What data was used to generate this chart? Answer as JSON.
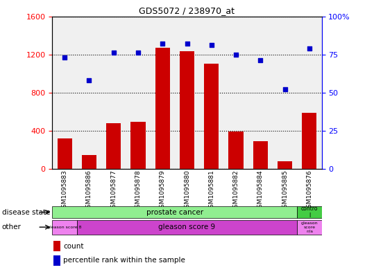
{
  "title": "GDS5072 / 238970_at",
  "samples": [
    "GSM1095883",
    "GSM1095886",
    "GSM1095877",
    "GSM1095878",
    "GSM1095879",
    "GSM1095880",
    "GSM1095881",
    "GSM1095882",
    "GSM1095884",
    "GSM1095885",
    "GSM1095876"
  ],
  "counts": [
    320,
    140,
    480,
    490,
    1270,
    1230,
    1100,
    390,
    290,
    80,
    590
  ],
  "percentiles": [
    73,
    58,
    76,
    76,
    82,
    82,
    81,
    75,
    71,
    52,
    79
  ],
  "ylim_left": [
    0,
    1600
  ],
  "ylim_right": [
    0,
    100
  ],
  "yticks_left": [
    0,
    400,
    800,
    1200,
    1600
  ],
  "yticks_right": [
    0,
    25,
    50,
    75,
    100
  ],
  "bar_color": "#cc0000",
  "dot_color": "#0000cc",
  "disease_state_prostate_color": "#90ee90",
  "disease_state_control_color": "#44cc44",
  "gleason8_color": "#ee82ee",
  "gleason9_color": "#cc44cc",
  "gleason_na_color": "#ee82ee",
  "plot_bg_color": "#f0f0f0",
  "background_color": "#ffffff"
}
